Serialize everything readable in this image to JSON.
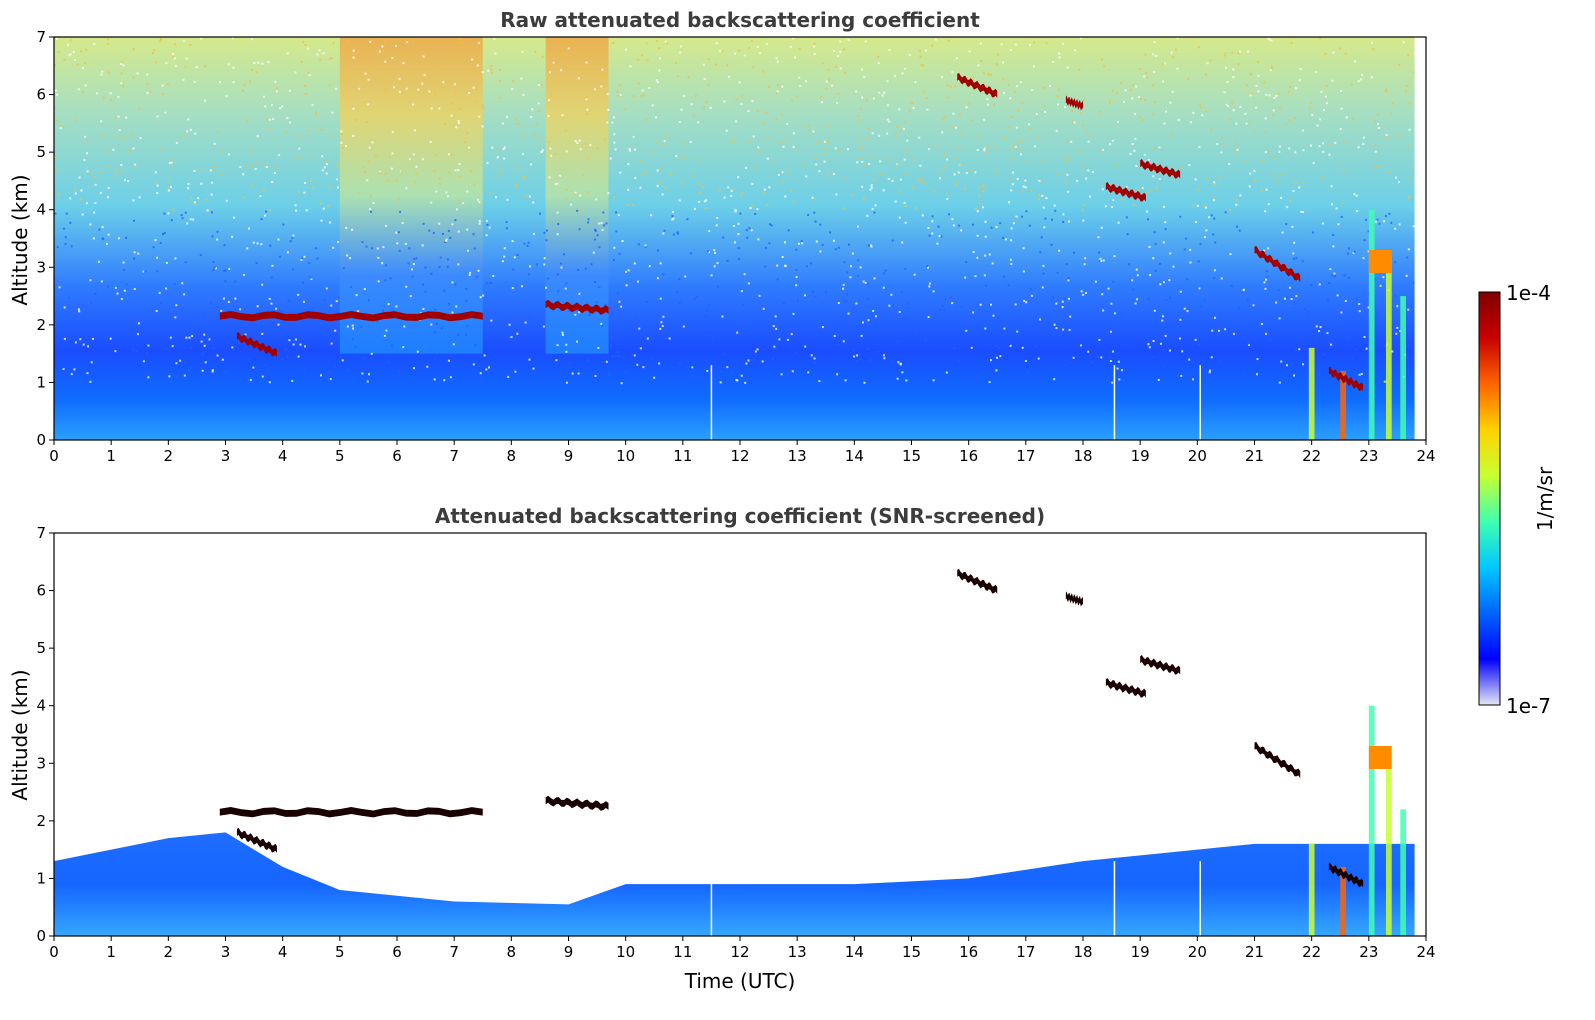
{
  "chart_data": [
    {
      "type": "heatmap",
      "title": "Raw attenuated backscattering coefficient",
      "xlabel": "",
      "ylabel": "Altitude (km)",
      "xlim": [
        0,
        24
      ],
      "ylim": [
        0,
        7
      ],
      "xticks": [
        "0",
        "1",
        "2",
        "3",
        "4",
        "5",
        "6",
        "7",
        "8",
        "9",
        "10",
        "11",
        "12",
        "13",
        "14",
        "15",
        "16",
        "17",
        "18",
        "19",
        "20",
        "21",
        "22",
        "23",
        "24"
      ],
      "yticks": [
        "0",
        "1",
        "2",
        "3",
        "4",
        "5",
        "6",
        "7"
      ],
      "screened": false,
      "cloud_layers": [
        {
          "t_start": 2.9,
          "t_end": 7.5,
          "alt_start": 2.15,
          "alt_end": 2.15
        },
        {
          "t_start": 3.2,
          "t_end": 3.9,
          "alt_start": 1.8,
          "alt_end": 1.5
        },
        {
          "t_start": 8.6,
          "t_end": 9.7,
          "alt_start": 2.35,
          "alt_end": 2.25
        },
        {
          "t_start": 15.8,
          "t_end": 16.5,
          "alt_start": 6.3,
          "alt_end": 6.0
        },
        {
          "t_start": 17.7,
          "t_end": 18.0,
          "alt_start": 5.9,
          "alt_end": 5.8
        },
        {
          "t_start": 18.4,
          "t_end": 19.1,
          "alt_start": 4.4,
          "alt_end": 4.2
        },
        {
          "t_start": 19.0,
          "t_end": 19.7,
          "alt_start": 4.8,
          "alt_end": 4.6
        },
        {
          "t_start": 21.0,
          "t_end": 21.8,
          "alt_start": 3.3,
          "alt_end": 2.8
        },
        {
          "t_start": 22.3,
          "t_end": 22.9,
          "alt_start": 1.2,
          "alt_end": 0.9
        }
      ]
    },
    {
      "type": "heatmap",
      "title": "Attenuated backscattering coefficient (SNR-screened)",
      "xlabel": "Time (UTC)",
      "ylabel": "Altitude (km)",
      "xlim": [
        0,
        24
      ],
      "ylim": [
        0,
        7
      ],
      "xticks": [
        "0",
        "1",
        "2",
        "3",
        "4",
        "5",
        "6",
        "7",
        "8",
        "9",
        "10",
        "11",
        "12",
        "13",
        "14",
        "15",
        "16",
        "17",
        "18",
        "19",
        "20",
        "21",
        "22",
        "23",
        "24"
      ],
      "yticks": [
        "0",
        "1",
        "2",
        "3",
        "4",
        "5",
        "6",
        "7"
      ],
      "screened": true,
      "boundary_layer_top": [
        {
          "t": 0,
          "alt": 1.3
        },
        {
          "t": 2,
          "alt": 1.7
        },
        {
          "t": 3,
          "alt": 1.8
        },
        {
          "t": 4,
          "alt": 1.2
        },
        {
          "t": 5,
          "alt": 0.8
        },
        {
          "t": 7,
          "alt": 0.6
        },
        {
          "t": 9,
          "alt": 0.55
        },
        {
          "t": 10,
          "alt": 0.9
        },
        {
          "t": 14,
          "alt": 0.9
        },
        {
          "t": 16,
          "alt": 1.0
        },
        {
          "t": 18,
          "alt": 1.3
        },
        {
          "t": 21,
          "alt": 1.6
        },
        {
          "t": 23.8,
          "alt": 1.6
        }
      ]
    }
  ],
  "colorbar": {
    "label": "1/m/sr",
    "min_label": "1e-7",
    "max_label": "1e-4",
    "colors": [
      "#e6e6f5",
      "#0000ff",
      "#0064ff",
      "#00c8ff",
      "#40ffb0",
      "#c8ff30",
      "#ffd200",
      "#ff6400",
      "#c80000",
      "#800000"
    ]
  }
}
